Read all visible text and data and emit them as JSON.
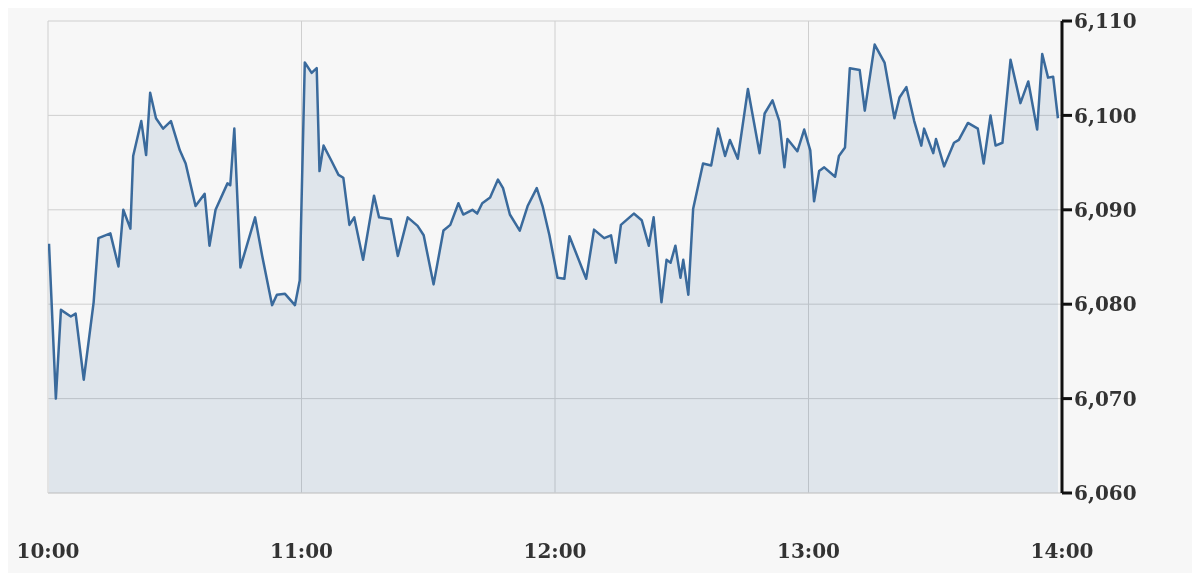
{
  "chart_data": {
    "type": "area",
    "x": [
      10.004,
      10.031,
      10.051,
      10.09,
      10.109,
      10.141,
      10.18,
      10.199,
      10.246,
      10.278,
      10.297,
      10.325,
      10.336,
      10.368,
      10.387,
      10.403,
      10.426,
      10.454,
      10.485,
      10.52,
      10.543,
      10.582,
      10.618,
      10.637,
      10.661,
      10.708,
      10.719,
      10.735,
      10.759,
      10.817,
      10.845,
      10.884,
      10.903,
      10.935,
      10.974,
      10.993,
      11.013,
      11.04,
      11.06,
      11.071,
      11.087,
      11.118,
      11.146,
      11.165,
      11.189,
      11.208,
      11.243,
      11.286,
      11.306,
      11.353,
      11.38,
      11.419,
      11.458,
      11.482,
      11.521,
      11.56,
      11.587,
      11.619,
      11.638,
      11.674,
      11.693,
      11.713,
      11.744,
      11.775,
      11.795,
      11.822,
      11.861,
      11.892,
      11.928,
      11.951,
      11.978,
      12.01,
      12.037,
      12.057,
      12.123,
      12.154,
      12.194,
      12.221,
      12.24,
      12.26,
      12.311,
      12.342,
      12.37,
      12.389,
      12.42,
      12.44,
      12.456,
      12.475,
      12.495,
      12.506,
      12.526,
      12.545,
      12.584,
      12.616,
      12.643,
      12.671,
      12.69,
      12.721,
      12.761,
      12.807,
      12.827,
      12.858,
      12.885,
      12.905,
      12.917,
      12.956,
      12.983,
      13.007,
      13.022,
      13.042,
      13.062,
      13.105,
      13.12,
      13.144,
      13.163,
      13.202,
      13.222,
      13.261,
      13.3,
      13.339,
      13.359,
      13.386,
      13.417,
      13.445,
      13.456,
      13.492,
      13.503,
      13.535,
      13.574,
      13.593,
      13.629,
      13.668,
      13.691,
      13.718,
      13.738,
      13.765,
      13.797,
      13.836,
      13.867,
      13.902,
      13.922,
      13.945,
      13.965,
      13.984
    ],
    "series": [
      {
        "color": "#3a6a9c",
        "values": [
          6086.4,
          6070,
          6079.4,
          6078.7,
          6079,
          6072,
          6080.2,
          6087,
          6087.5,
          6084,
          6090,
          6088,
          6095.7,
          6099.4,
          6095.8,
          6102.4,
          6099.7,
          6098.6,
          6099.4,
          6096.3,
          6094.9,
          6090.4,
          6091.7,
          6086.2,
          6090,
          6092.8,
          6092.6,
          6098.6,
          6083.9,
          6089.2,
          6085.1,
          6079.9,
          6081,
          6081.1,
          6079.9,
          6082.5,
          6105.6,
          6104.5,
          6105,
          6094.1,
          6096.8,
          6095.2,
          6093.7,
          6093.4,
          6088.4,
          6089.2,
          6084.7,
          6091.5,
          6089.2,
          6089,
          6085.1,
          6089.2,
          6088.3,
          6087.3,
          6082.1,
          6087.8,
          6088.4,
          6090.7,
          6089.5,
          6090,
          6089.6,
          6090.7,
          6091.3,
          6093.2,
          6092.3,
          6089.5,
          6087.8,
          6090.4,
          6092.3,
          6090.4,
          6087.3,
          6082.8,
          6082.7,
          6087.2,
          6082.7,
          6087.9,
          6087,
          6087.3,
          6084.4,
          6088.4,
          6089.6,
          6088.9,
          6086.2,
          6089.2,
          6080.2,
          6084.7,
          6084.4,
          6086.2,
          6082.8,
          6084.7,
          6081,
          6090.1,
          6094.9,
          6094.7,
          6098.6,
          6095.7,
          6097.4,
          6095.4,
          6102.8,
          6096,
          6100.2,
          6101.6,
          6099.4,
          6094.5,
          6097.5,
          6096.2,
          6098.5,
          6096.3,
          6090.9,
          6094.1,
          6094.5,
          6093.5,
          6095.7,
          6096.6,
          6105,
          6104.8,
          6100.5,
          6107.5,
          6105.6,
          6099.7,
          6101.9,
          6103,
          6099.4,
          6096.8,
          6098.6,
          6096,
          6097.5,
          6094.6,
          6097.1,
          6097.4,
          6099.2,
          6098.6,
          6094.9,
          6100,
          6096.8,
          6097.1,
          6105.9,
          6101.3,
          6103.6,
          6098.5,
          6106.5,
          6104,
          6104.1,
          6099.7
        ]
      }
    ],
    "xlim": [
      10,
      14
    ],
    "xticks": [
      {
        "value": 10,
        "label": "10:00"
      },
      {
        "value": 11,
        "label": "11:00"
      },
      {
        "value": 12,
        "label": "12:00"
      },
      {
        "value": 13,
        "label": "13:00"
      },
      {
        "value": 14,
        "label": "14:00"
      }
    ],
    "ylim": [
      6060,
      6110
    ],
    "yticks": [
      {
        "value": 6060,
        "label": "6,060"
      },
      {
        "value": 6070,
        "label": "6,070"
      },
      {
        "value": 6080,
        "label": "6,080"
      },
      {
        "value": 6090,
        "label": "6,090"
      },
      {
        "value": 6100,
        "label": "6,100"
      },
      {
        "value": 6110,
        "label": "6,110"
      }
    ],
    "grid": true
  }
}
